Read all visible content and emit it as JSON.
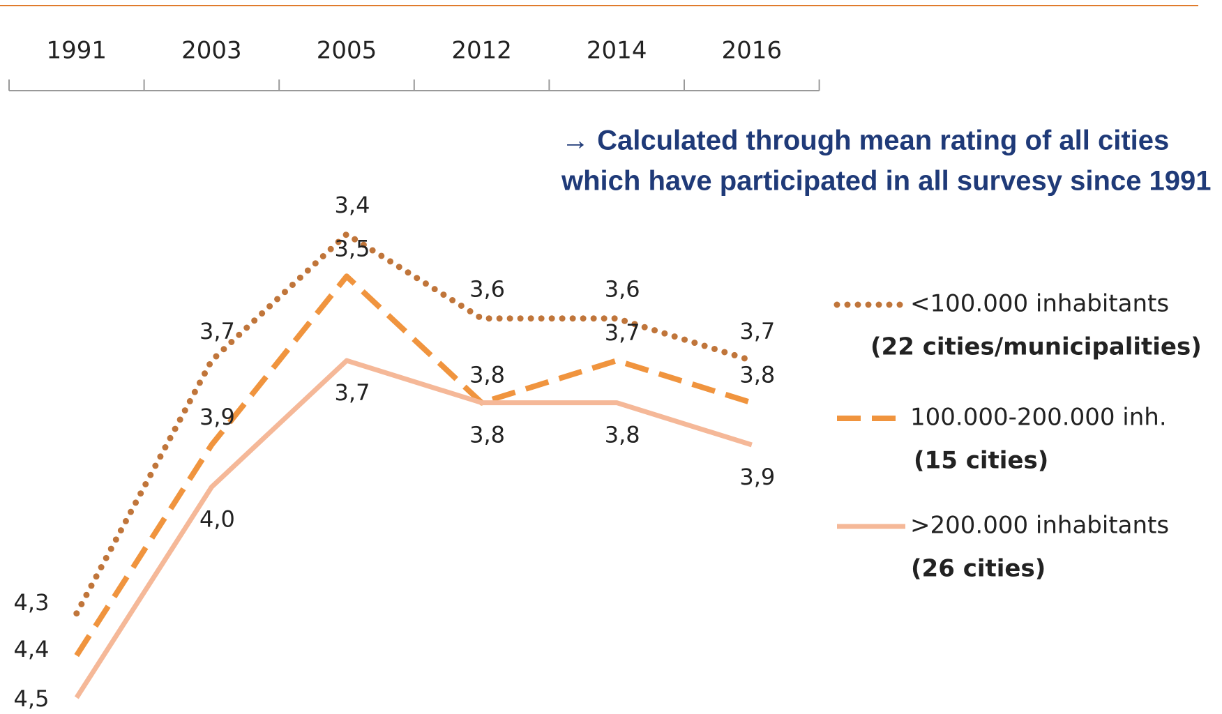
{
  "chart_data": {
    "type": "line",
    "annotation": [
      "→ Calculated through mean rating of all cities",
      "which have participated in all survesy since 1991"
    ],
    "categories": [
      "1991",
      "2003",
      "2005",
      "2012",
      "2014",
      "2016"
    ],
    "ylim": [
      4.6,
      3.2
    ],
    "series": [
      {
        "name": "<100.000 inhabitants",
        "description": "(22 cities/municipalities)",
        "color": "#c0753a",
        "line_style": "dotted",
        "values": [
          4.3,
          3.7,
          3.4,
          3.6,
          3.6,
          3.7
        ],
        "value_labels": [
          "4,3",
          "3,7",
          "3,4",
          "3,6",
          "3,6",
          "3,7"
        ]
      },
      {
        "name": "100.000-200.000 inh.",
        "description": "(15 cities)",
        "color": "#f0943e",
        "line_style": "dashed",
        "values": [
          4.4,
          3.9,
          3.5,
          3.8,
          3.7,
          3.8
        ],
        "value_labels": [
          "4,4",
          "3,9",
          "3,5",
          "3,8",
          "3,7",
          "3,8"
        ]
      },
      {
        "name": ">200.000 inhabitants",
        "description": "(26 cities)",
        "color": "#f5b898",
        "line_style": "solid",
        "values": [
          4.5,
          4.0,
          3.7,
          3.8,
          3.8,
          3.9
        ],
        "value_labels": [
          "4,5",
          "4,0",
          "3,7",
          "3,8",
          "3,8",
          "3,9"
        ]
      }
    ]
  }
}
